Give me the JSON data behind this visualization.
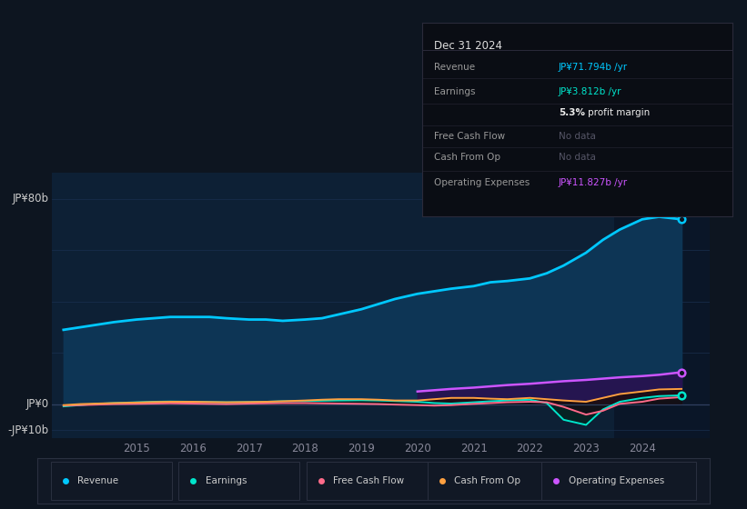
{
  "background_color": "#0d1520",
  "chart_bg_color": "#0d2035",
  "chart_bg_right": "#0a1828",
  "years": [
    2013.7,
    2014.0,
    2014.3,
    2014.6,
    2015.0,
    2015.3,
    2015.6,
    2016.0,
    2016.3,
    2016.6,
    2017.0,
    2017.3,
    2017.6,
    2018.0,
    2018.3,
    2018.6,
    2019.0,
    2019.3,
    2019.6,
    2020.0,
    2020.3,
    2020.6,
    2021.0,
    2021.3,
    2021.6,
    2022.0,
    2022.3,
    2022.6,
    2023.0,
    2023.3,
    2023.6,
    2024.0,
    2024.3,
    2024.7
  ],
  "revenue": [
    29,
    30,
    31,
    32,
    33,
    33.5,
    34,
    34,
    34,
    33.5,
    33,
    33,
    32.5,
    33,
    33.5,
    35,
    37,
    39,
    41,
    43,
    44,
    45,
    46,
    47.5,
    48,
    49,
    51,
    54,
    59,
    64,
    68,
    72,
    73,
    72
  ],
  "earnings": [
    -0.8,
    -0.3,
    0.2,
    0.5,
    0.8,
    1.0,
    1.1,
    1.0,
    0.9,
    0.8,
    0.9,
    1.0,
    1.2,
    1.3,
    1.4,
    1.5,
    1.6,
    1.5,
    1.3,
    1.0,
    0.5,
    0.3,
    0.8,
    1.2,
    1.5,
    1.8,
    0.5,
    -6.0,
    -8.0,
    -2.0,
    1.0,
    2.5,
    3.2,
    3.5
  ],
  "free_cash_flow": [
    -0.5,
    -0.3,
    -0.1,
    0.1,
    0.2,
    0.3,
    0.4,
    0.3,
    0.2,
    0.1,
    0.3,
    0.4,
    0.5,
    0.5,
    0.4,
    0.3,
    0.2,
    0.1,
    -0.1,
    -0.3,
    -0.5,
    -0.3,
    0.2,
    0.5,
    0.8,
    1.0,
    0.8,
    -1.0,
    -4.0,
    -2.5,
    0.2,
    1.0,
    2.2,
    2.8
  ],
  "cash_from_op": [
    -0.3,
    0.1,
    0.3,
    0.5,
    0.7,
    0.9,
    1.0,
    1.0,
    0.9,
    0.8,
    0.9,
    1.0,
    1.2,
    1.5,
    1.8,
    2.0,
    2.0,
    1.8,
    1.5,
    1.5,
    2.0,
    2.5,
    2.5,
    2.2,
    2.0,
    2.5,
    2.0,
    1.5,
    1.0,
    2.5,
    4.0,
    5.0,
    5.8,
    6.0
  ],
  "op_expenses": [
    null,
    null,
    null,
    null,
    null,
    null,
    null,
    null,
    null,
    null,
    null,
    null,
    null,
    null,
    null,
    null,
    null,
    null,
    null,
    5.0,
    5.5,
    6.0,
    6.5,
    7.0,
    7.5,
    8.0,
    8.5,
    9.0,
    9.5,
    10.0,
    10.5,
    11.0,
    11.5,
    12.5
  ],
  "revenue_color": "#00c8ff",
  "earnings_color": "#00e5cc",
  "free_cash_flow_color": "#ff6b8a",
  "cash_from_op_color": "#ffa040",
  "op_expenses_color": "#cc55ff",
  "ylim_min": -13,
  "ylim_max": 90,
  "ytick_labels": [
    "-JP¥10b",
    "JP¥0",
    "JP¥80b"
  ],
  "ytick_values": [
    -10,
    0,
    80
  ],
  "xtick_labels": [
    "2015",
    "2016",
    "2017",
    "2018",
    "2019",
    "2020",
    "2021",
    "2022",
    "2023",
    "2024"
  ],
  "xtick_values": [
    2015,
    2016,
    2017,
    2018,
    2019,
    2020,
    2021,
    2022,
    2023,
    2024
  ],
  "xlim_min": 2013.5,
  "xlim_max": 2025.2,
  "info_box": {
    "title": "Dec 31 2024",
    "rows": [
      {
        "label": "Revenue",
        "value": "JP¥71.794b /yr",
        "value_color": "#00c8ff",
        "label_color": "#999999"
      },
      {
        "label": "Earnings",
        "value": "JP¥3.812b /yr",
        "value_color": "#00e5cc",
        "label_color": "#999999"
      },
      {
        "label": "",
        "value": "5.3% profit margin",
        "value_color": "#ffffff",
        "label_color": "#999999",
        "bold_part": "5.3%"
      },
      {
        "label": "Free Cash Flow",
        "value": "No data",
        "value_color": "#555566",
        "label_color": "#999999"
      },
      {
        "label": "Cash From Op",
        "value": "No data",
        "value_color": "#555566",
        "label_color": "#999999"
      },
      {
        "label": "Operating Expenses",
        "value": "JP¥11.827b /yr",
        "value_color": "#cc55ff",
        "label_color": "#999999"
      }
    ]
  },
  "legend_items": [
    {
      "label": "Revenue",
      "color": "#00c8ff"
    },
    {
      "label": "Earnings",
      "color": "#00e5cc"
    },
    {
      "label": "Free Cash Flow",
      "color": "#ff6b8a"
    },
    {
      "label": "Cash From Op",
      "color": "#ffa040"
    },
    {
      "label": "Operating Expenses",
      "color": "#cc55ff"
    }
  ]
}
